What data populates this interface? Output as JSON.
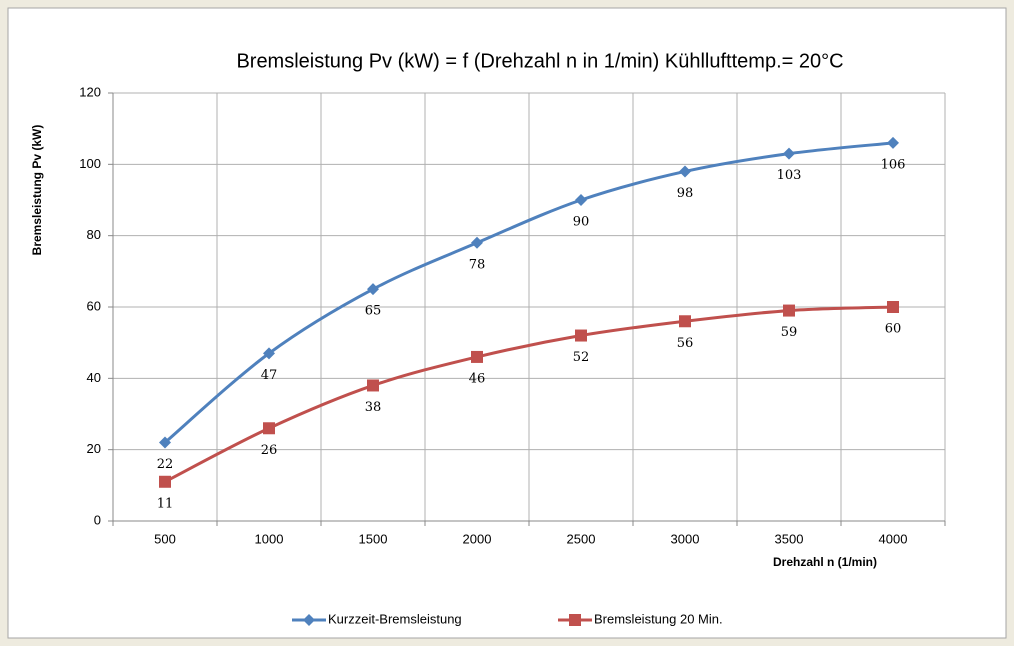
{
  "chart_data": {
    "type": "line",
    "title": "Bremsleistung Pv (kW) = f (Drehzahl n in 1/min)    Kühllufttemp.= 20°C",
    "x_label": "Drehzahl n (1/min)",
    "y_label": "Bremsleistung Pv (kW)",
    "categories": [
      "500",
      "1000",
      "1500",
      "2000",
      "2500",
      "3000",
      "3500",
      "4000"
    ],
    "series": [
      {
        "name": "Kurzzeit-Bremsleistung",
        "color": "#4f81bd",
        "marker": "diamond",
        "values": [
          22,
          47,
          65,
          78,
          90,
          98,
          103,
          106
        ]
      },
      {
        "name": "Bremsleistung 20 Min.",
        "color": "#c0504d",
        "marker": "square",
        "values": [
          11,
          26,
          38,
          46,
          52,
          56,
          59,
          60
        ]
      }
    ],
    "ylim": [
      0,
      120
    ],
    "yticks": [
      0,
      20,
      40,
      60,
      80,
      100,
      120
    ],
    "grid": true,
    "smooth": true,
    "legend": "bottom"
  }
}
